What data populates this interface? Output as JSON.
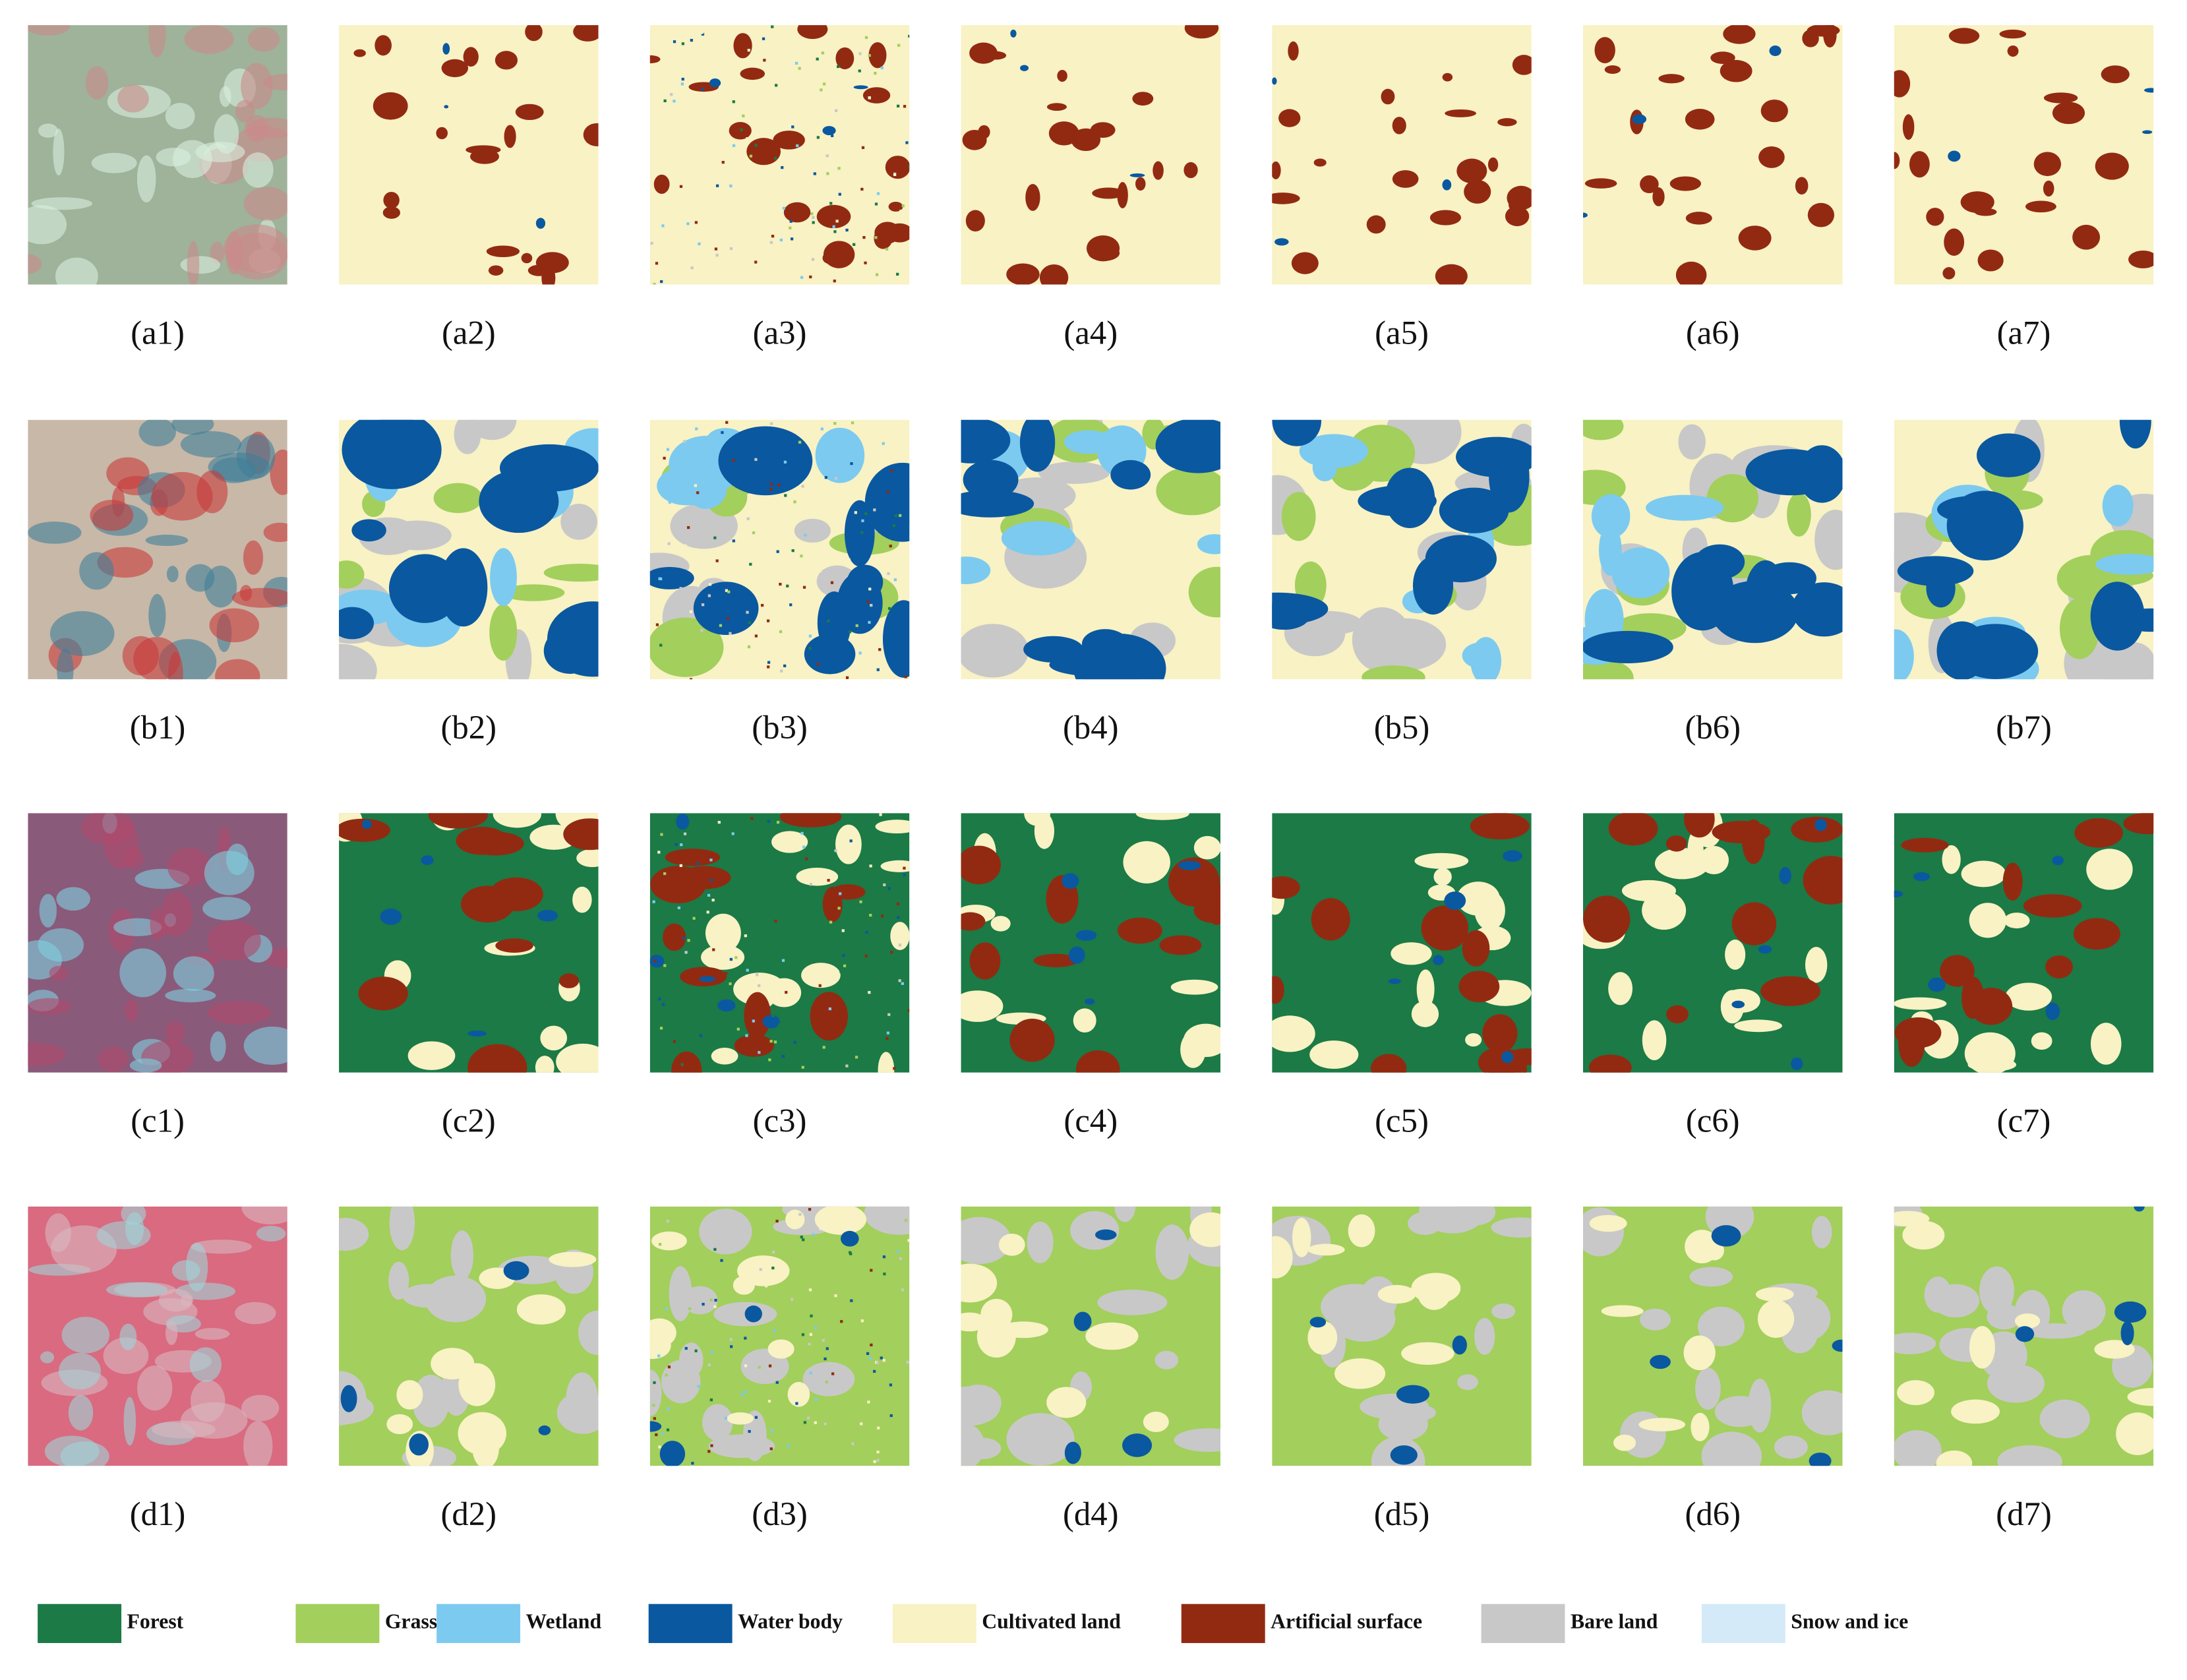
{
  "panels": [
    [
      "(a1)",
      "(a2)",
      "(a3)",
      "(a4)",
      "(a5)",
      "(a6)",
      "(a7)"
    ],
    [
      "(b1)",
      "(b2)",
      "(b3)",
      "(b4)",
      "(b5)",
      "(b6)",
      "(b7)"
    ],
    [
      "(c1)",
      "(c2)",
      "(c3)",
      "(c4)",
      "(c5)",
      "(c6)",
      "(c7)"
    ],
    [
      "(d1)",
      "(d2)",
      "(d3)",
      "(d4)",
      "(d5)",
      "(d6)",
      "(d7)"
    ]
  ],
  "legend": [
    {
      "label": "Forest",
      "color": "#1b7a45"
    },
    {
      "label": "Grassland",
      "color": "#a3cf5c"
    },
    {
      "label": "Wetland",
      "color": "#7ccaf0"
    },
    {
      "label": "Water body",
      "color": "#0a58a0"
    },
    {
      "label": "Cultivated land",
      "color": "#f8f2c4"
    },
    {
      "label": "Artificial surface",
      "color": "#922a12"
    },
    {
      "label": "Bare land",
      "color": "#c8c8c8"
    },
    {
      "label": "Snow and ice",
      "color": "#d4eaf8"
    }
  ]
}
